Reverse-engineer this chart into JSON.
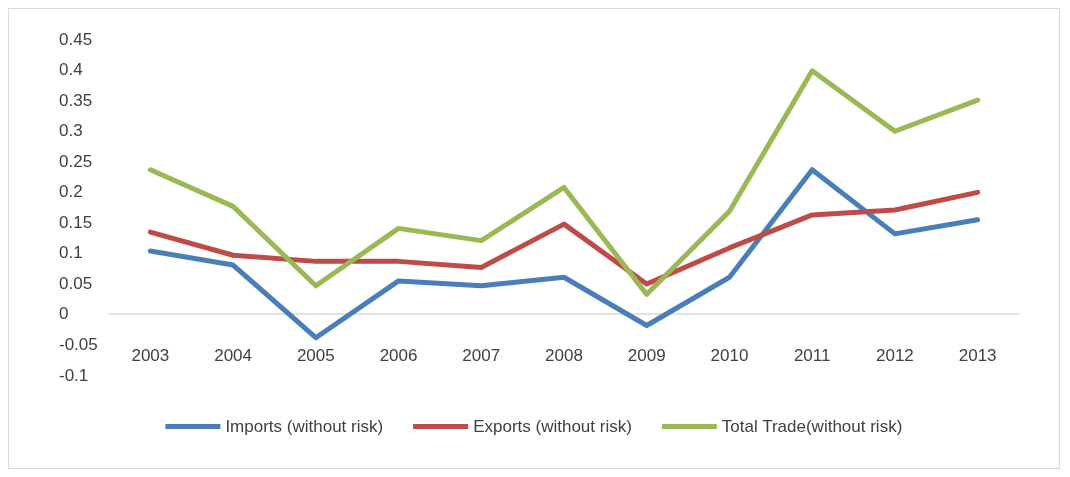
{
  "chart_data": {
    "type": "line",
    "categories": [
      "2003",
      "2004",
      "2005",
      "2006",
      "2007",
      "2008",
      "2009",
      "2010",
      "2011",
      "2012",
      "2013"
    ],
    "series": [
      {
        "name": "Imports (without risk)",
        "color": "#4a7ebb",
        "values": [
          0.103,
          0.08,
          -0.039,
          0.054,
          0.046,
          0.06,
          -0.019,
          0.06,
          0.236,
          0.131,
          0.154
        ]
      },
      {
        "name": "Exports (without risk)",
        "color": "#be4b48",
        "values": [
          0.134,
          0.096,
          0.086,
          0.086,
          0.076,
          0.147,
          0.049,
          0.108,
          0.162,
          0.17,
          0.199
        ]
      },
      {
        "name": "Total Trade(without risk)",
        "color": "#98b954",
        "values": [
          0.236,
          0.176,
          0.046,
          0.14,
          0.12,
          0.207,
          0.032,
          0.168,
          0.398,
          0.299,
          0.35
        ]
      }
    ],
    "ylim": [
      -0.1,
      0.45
    ],
    "yticks": [
      -0.1,
      -0.05,
      0,
      0.05,
      0.1,
      0.15,
      0.2,
      0.25,
      0.3,
      0.35,
      0.4,
      0.45
    ],
    "grid": false,
    "legend": "bottom",
    "marker": "none",
    "line_style": "solid"
  }
}
